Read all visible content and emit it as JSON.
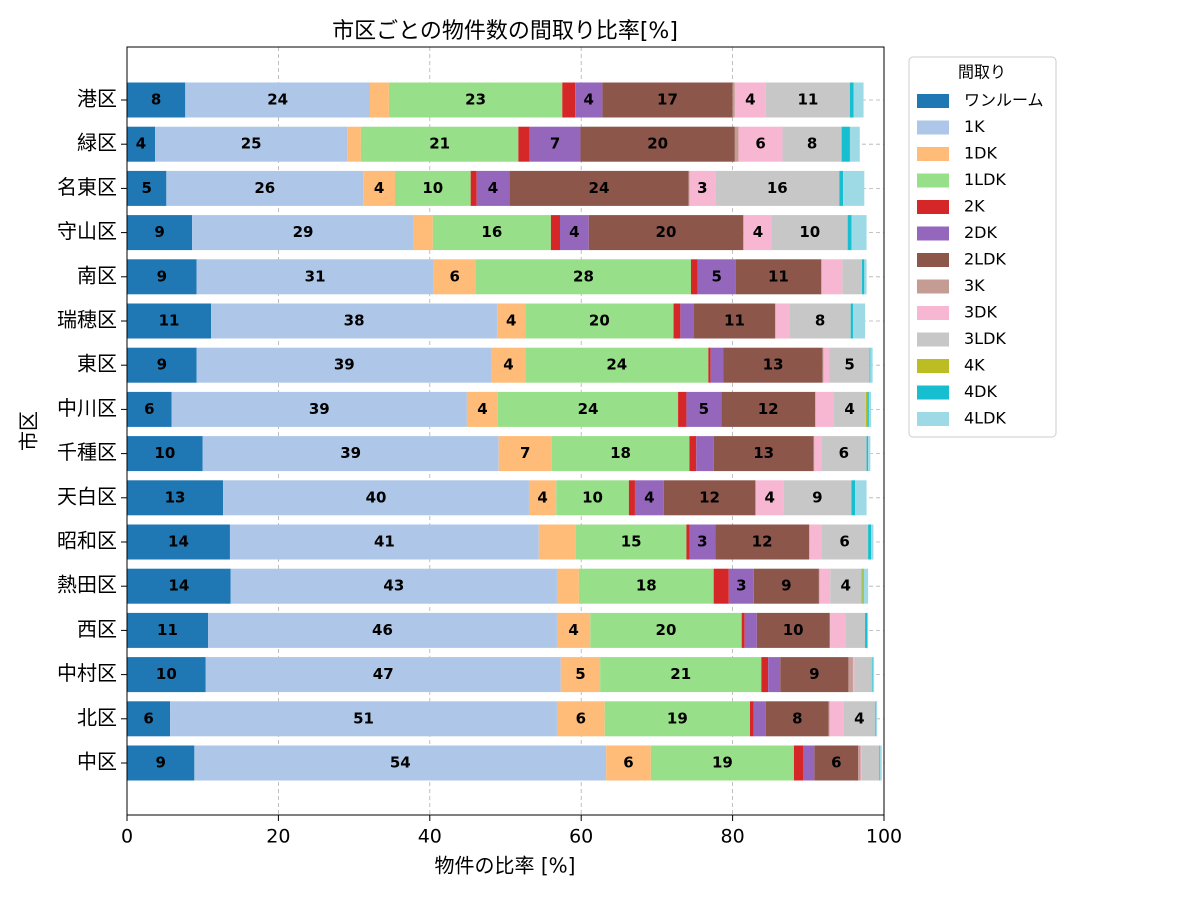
{
  "chart_data": {
    "type": "stacked_barh",
    "title": "市区ごとの物件数の間取り比率[%]",
    "x_label": "物件の比率 [%]",
    "y_label": "市区",
    "legend_title": "間取り",
    "legend_position": "outside upper right",
    "grid": true,
    "xlim": [
      0,
      100
    ],
    "xticks": [
      0,
      20,
      40,
      60,
      80,
      100
    ],
    "categories": [
      "港区",
      "緑区",
      "名東区",
      "守山区",
      "南区",
      "瑞穂区",
      "東区",
      "中川区",
      "千種区",
      "天白区",
      "昭和区",
      "熱田区",
      "西区",
      "中村区",
      "北区",
      "中区"
    ],
    "series": [
      {
        "name": "ワンルーム",
        "color": "#1f77b4",
        "values": [
          7.7,
          3.7,
          5.2,
          8.6,
          9.2,
          11.1,
          9.2,
          5.9,
          10.0,
          12.7,
          13.6,
          13.7,
          10.7,
          10.4,
          5.7,
          8.9
        ],
        "value_labels": [
          "8",
          "4",
          "5",
          "9",
          "9",
          "11",
          "9",
          "6",
          "10",
          "13",
          "14",
          "14",
          "11",
          "10",
          "6",
          "9"
        ]
      },
      {
        "name": "1K",
        "color": "#aec7e8",
        "values": [
          24.4,
          25.4,
          26.0,
          29.3,
          31.3,
          37.8,
          39.0,
          39.0,
          39.1,
          40.4,
          40.8,
          43.1,
          46.1,
          46.9,
          51.1,
          54.4
        ],
        "value_labels": [
          "24",
          "25",
          "26",
          "29",
          "31",
          "38",
          "39",
          "39",
          "39",
          "40",
          "41",
          "43",
          "46",
          "47",
          "51",
          "54"
        ]
      },
      {
        "name": "1DK",
        "color": "#ffbb78",
        "values": [
          2.5,
          1.8,
          4.2,
          2.5,
          5.6,
          3.7,
          4.4,
          4.1,
          7.0,
          3.6,
          4.9,
          2.9,
          4.4,
          5.2,
          6.3,
          5.9
        ],
        "value_labels": [
          null,
          null,
          "4",
          null,
          "6",
          "4",
          "4",
          "4",
          "7",
          "4",
          null,
          null,
          "4",
          "5",
          "6",
          "6"
        ]
      },
      {
        "name": "1LDK",
        "color": "#98df8a",
        "values": [
          22.9,
          20.8,
          10.0,
          15.6,
          28.4,
          19.6,
          24.2,
          23.8,
          18.2,
          9.6,
          14.6,
          17.8,
          20.0,
          21.3,
          19.2,
          18.9
        ],
        "value_labels": [
          "23",
          "21",
          "10",
          "16",
          "28",
          "20",
          "24",
          "24",
          "18",
          "10",
          "15",
          "18",
          "20",
          "21",
          "19",
          "19"
        ]
      },
      {
        "name": "2K",
        "color": "#d62728",
        "values": [
          1.7,
          1.5,
          0.8,
          1.2,
          0.9,
          0.9,
          0.3,
          1.1,
          0.9,
          0.8,
          0.4,
          2.0,
          0.4,
          0.9,
          0.5,
          1.2
        ]
      },
      {
        "name": "2DK",
        "color": "#9467bd",
        "values": [
          3.6,
          6.7,
          4.3,
          3.8,
          5.0,
          1.8,
          1.7,
          4.6,
          2.3,
          3.8,
          3.4,
          3.3,
          1.6,
          1.6,
          1.6,
          1.5
        ],
        "value_labels": [
          "4",
          "7",
          "4",
          "4",
          "5",
          null,
          null,
          "5",
          null,
          "4",
          "3",
          "3",
          null,
          null,
          null,
          null
        ]
      },
      {
        "name": "2LDK",
        "color": "#8c564b",
        "values": [
          17.2,
          20.4,
          23.7,
          20.4,
          11.3,
          10.7,
          13.1,
          12.4,
          13.2,
          12.1,
          12.4,
          8.6,
          9.6,
          9.0,
          8.3,
          5.8
        ],
        "value_labels": [
          "17",
          "20",
          "24",
          "20",
          "11",
          "11",
          "13",
          "12",
          "13",
          "12",
          "12",
          "9",
          "10",
          "9",
          "8",
          "6"
        ]
      },
      {
        "name": "3K",
        "color": "#c49c94",
        "values": [
          0.3,
          0.5,
          0.1,
          0.1,
          0.1,
          0.1,
          0.1,
          0.1,
          0.1,
          0.1,
          0.1,
          0.1,
          0.1,
          0.6,
          0.1,
          0.3
        ]
      },
      {
        "name": "3DK",
        "color": "#f7b6d2",
        "values": [
          4.1,
          5.8,
          3.4,
          3.7,
          2.7,
          1.8,
          0.8,
          2.3,
          0.9,
          3.6,
          1.5,
          1.4,
          2.0,
          0.2,
          1.9,
          0.1
        ],
        "value_labels": [
          "4",
          "6",
          "3",
          "4",
          null,
          null,
          null,
          null,
          null,
          "4",
          null,
          null,
          null,
          null,
          null,
          null
        ]
      },
      {
        "name": "3LDK",
        "color": "#c7c7c7",
        "values": [
          11.1,
          7.8,
          16.4,
          10.0,
          2.6,
          8.1,
          5.3,
          4.3,
          6.0,
          9.0,
          6.2,
          4.1,
          2.6,
          2.3,
          4.1,
          2.4
        ],
        "value_labels": [
          "11",
          "8",
          "16",
          "10",
          null,
          "8",
          "5",
          "4",
          "6",
          "9",
          "6",
          "4",
          null,
          null,
          "4",
          null
        ]
      },
      {
        "name": "4K",
        "color": "#bcbd22",
        "values": [
          0,
          0,
          0,
          0,
          0,
          0,
          0,
          0.2,
          0,
          0,
          0,
          0.2,
          0,
          0,
          0,
          0
        ]
      },
      {
        "name": "4DK",
        "color": "#17becf",
        "values": [
          0.5,
          1.1,
          0.5,
          0.5,
          0.3,
          0.3,
          0.1,
          0.2,
          0.2,
          0.5,
          0.4,
          0.1,
          0.3,
          0.1,
          0.1,
          0.1
        ]
      },
      {
        "name": "4LDK",
        "color": "#9edae5",
        "values": [
          1.3,
          1.3,
          2.8,
          2.0,
          0.3,
          1.6,
          0.3,
          0.3,
          0.3,
          1.5,
          0.3,
          0.6,
          0.1,
          0.2,
          0.2,
          0.2
        ]
      }
    ]
  }
}
